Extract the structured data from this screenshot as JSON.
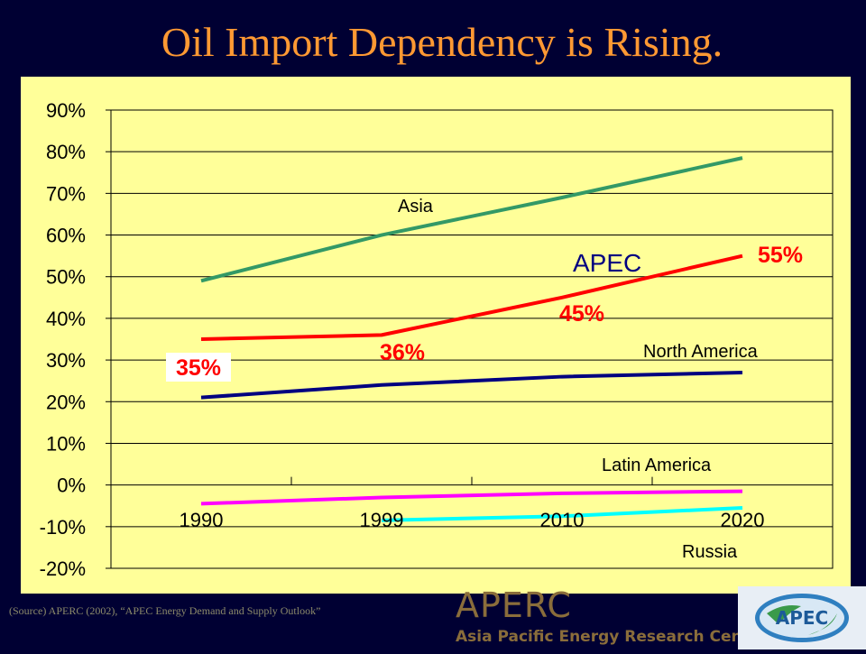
{
  "title": "Oil Import Dependency is Rising.",
  "source_note": "(Source) APERC (2002), “APEC Energy Demand and Supply Outlook”",
  "logo": {
    "main": "APERC",
    "sub": "Asia Pacific Energy Research Centre",
    "badge": "APEC"
  },
  "colors": {
    "background": "#000033",
    "title": "#ff9933",
    "panel": "#ffff99",
    "asia": "#339966",
    "apec": "#ff0000",
    "north_america": "#000080",
    "latin_america": "#ff00ff",
    "russia": "#00ffff"
  },
  "chart_data": {
    "type": "line",
    "title": "",
    "xlabel": "",
    "ylabel": "",
    "categories": [
      "1990",
      "1999",
      "2010",
      "2020"
    ],
    "ylim": [
      -20,
      90
    ],
    "yticks": [
      "90%",
      "80%",
      "70%",
      "60%",
      "50%",
      "40%",
      "30%",
      "20%",
      "10%",
      "0%",
      "-10%",
      "-20%"
    ],
    "grid": "horizontal",
    "series": [
      {
        "name": "Asia",
        "values": [
          49,
          60,
          69,
          78.5
        ],
        "color": "#339966"
      },
      {
        "name": "APEC",
        "values": [
          35,
          36,
          45,
          55
        ],
        "color": "#ff0000"
      },
      {
        "name": "North America",
        "values": [
          21,
          24,
          26,
          27
        ],
        "color": "#000080"
      },
      {
        "name": "Latin America",
        "values": [
          -4.5,
          -3,
          -2,
          -1.5
        ],
        "color": "#ff00ff"
      },
      {
        "name": "Russia",
        "values": [
          null,
          -8.5,
          -7.5,
          -5.5
        ],
        "color": "#00ffff"
      }
    ],
    "data_labels": [
      {
        "series": "APEC",
        "index": 0,
        "text": "35%"
      },
      {
        "series": "APEC",
        "index": 1,
        "text": "36%"
      },
      {
        "series": "APEC",
        "index": 2,
        "text": "45%"
      },
      {
        "series": "APEC",
        "index": 3,
        "text": "55%"
      }
    ]
  }
}
